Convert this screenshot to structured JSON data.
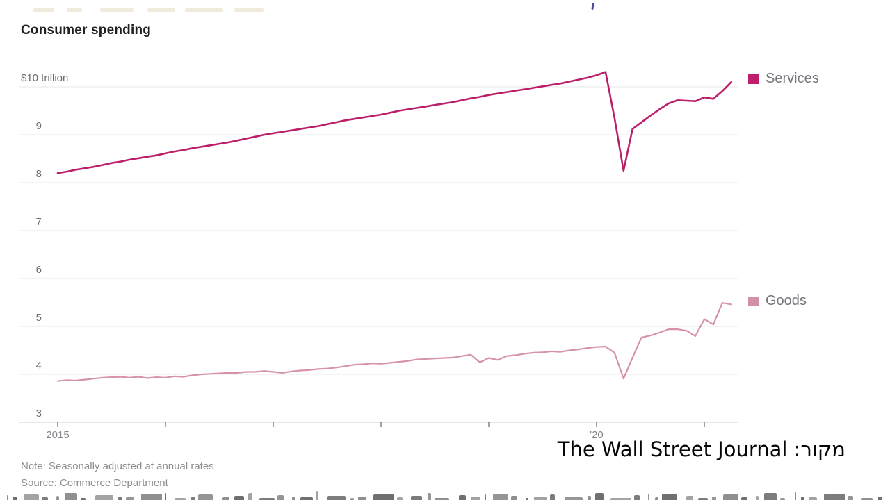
{
  "page": {
    "title": "Consumer spending",
    "note": "Note: Seasonally adjusted at annual rates",
    "source": "Source: Commerce Department",
    "external_credit": "מקור: The Wall Street Journal"
  },
  "colors": {
    "services": "#bc1f69",
    "services_swatch": "#c01d6c",
    "goods": "#d792ab",
    "goods_swatch": "#d48fa8",
    "gridline": "#e7e7e7",
    "axis_line": "#cfcfcf",
    "tick": "#4a4a4a",
    "text_gray": "#6e6e73"
  },
  "chart_data": {
    "type": "line",
    "title": "Consumer spending",
    "unit": "trillion USD, seasonally adjusted annual rate",
    "grid": true,
    "legend_position": "right-of-line-ends",
    "y_axis": {
      "top_label": "$10 trillion",
      "ticks": [
        10,
        9,
        8,
        7,
        6,
        5,
        4,
        3
      ],
      "range": [
        3,
        10.6
      ]
    },
    "x_axis": {
      "tick_years": [
        2015,
        2016,
        2017,
        2018,
        2019,
        2020,
        2021
      ],
      "labeled_ticks": [
        {
          "year": 2015,
          "label": "2015"
        },
        {
          "year": 2020,
          "label": "'20"
        }
      ],
      "range": [
        2015,
        2021.45
      ]
    },
    "legend": [
      {
        "name": "Services",
        "color": "#c01d6c"
      },
      {
        "name": "Goods",
        "color": "#d48fa8"
      }
    ],
    "series": [
      {
        "name": "Services",
        "color": "#bc1f69",
        "stroke_width": 2.6,
        "start_year": 2015,
        "interval_months": 1,
        "values": [
          8.2,
          8.23,
          8.27,
          8.3,
          8.33,
          8.37,
          8.41,
          8.44,
          8.48,
          8.51,
          8.54,
          8.57,
          8.61,
          8.65,
          8.68,
          8.72,
          8.75,
          8.78,
          8.81,
          8.84,
          8.88,
          8.92,
          8.96,
          9.0,
          9.03,
          9.06,
          9.09,
          9.12,
          9.15,
          9.18,
          9.22,
          9.26,
          9.3,
          9.33,
          9.36,
          9.39,
          9.42,
          9.46,
          9.5,
          9.53,
          9.56,
          9.59,
          9.62,
          9.65,
          9.68,
          9.72,
          9.76,
          9.79,
          9.83,
          9.86,
          9.89,
          9.92,
          9.95,
          9.98,
          10.01,
          10.04,
          10.07,
          10.11,
          10.15,
          10.19,
          10.24,
          10.31,
          9.35,
          8.25,
          9.12,
          9.26,
          9.4,
          9.53,
          9.65,
          9.72,
          9.71,
          9.7,
          9.78,
          9.75,
          9.91,
          10.1
        ]
      },
      {
        "name": "Goods",
        "color": "#d792ab",
        "stroke_width": 2.2,
        "start_year": 2015,
        "interval_months": 1,
        "values": [
          3.86,
          3.88,
          3.87,
          3.89,
          3.91,
          3.93,
          3.94,
          3.95,
          3.93,
          3.95,
          3.92,
          3.94,
          3.93,
          3.96,
          3.95,
          3.98,
          4.0,
          4.01,
          4.02,
          4.03,
          4.03,
          4.05,
          4.05,
          4.07,
          4.05,
          4.03,
          4.06,
          4.08,
          4.09,
          4.11,
          4.12,
          4.14,
          4.17,
          4.2,
          4.21,
          4.23,
          4.22,
          4.24,
          4.26,
          4.28,
          4.31,
          4.32,
          4.33,
          4.34,
          4.35,
          4.38,
          4.41,
          4.25,
          4.34,
          4.3,
          4.38,
          4.4,
          4.43,
          4.45,
          4.46,
          4.48,
          4.47,
          4.5,
          4.52,
          4.55,
          4.57,
          4.58,
          4.45,
          3.91,
          4.35,
          4.77,
          4.81,
          4.87,
          4.94,
          4.94,
          4.91,
          4.8,
          5.15,
          5.04,
          5.49,
          5.46
        ]
      }
    ]
  }
}
